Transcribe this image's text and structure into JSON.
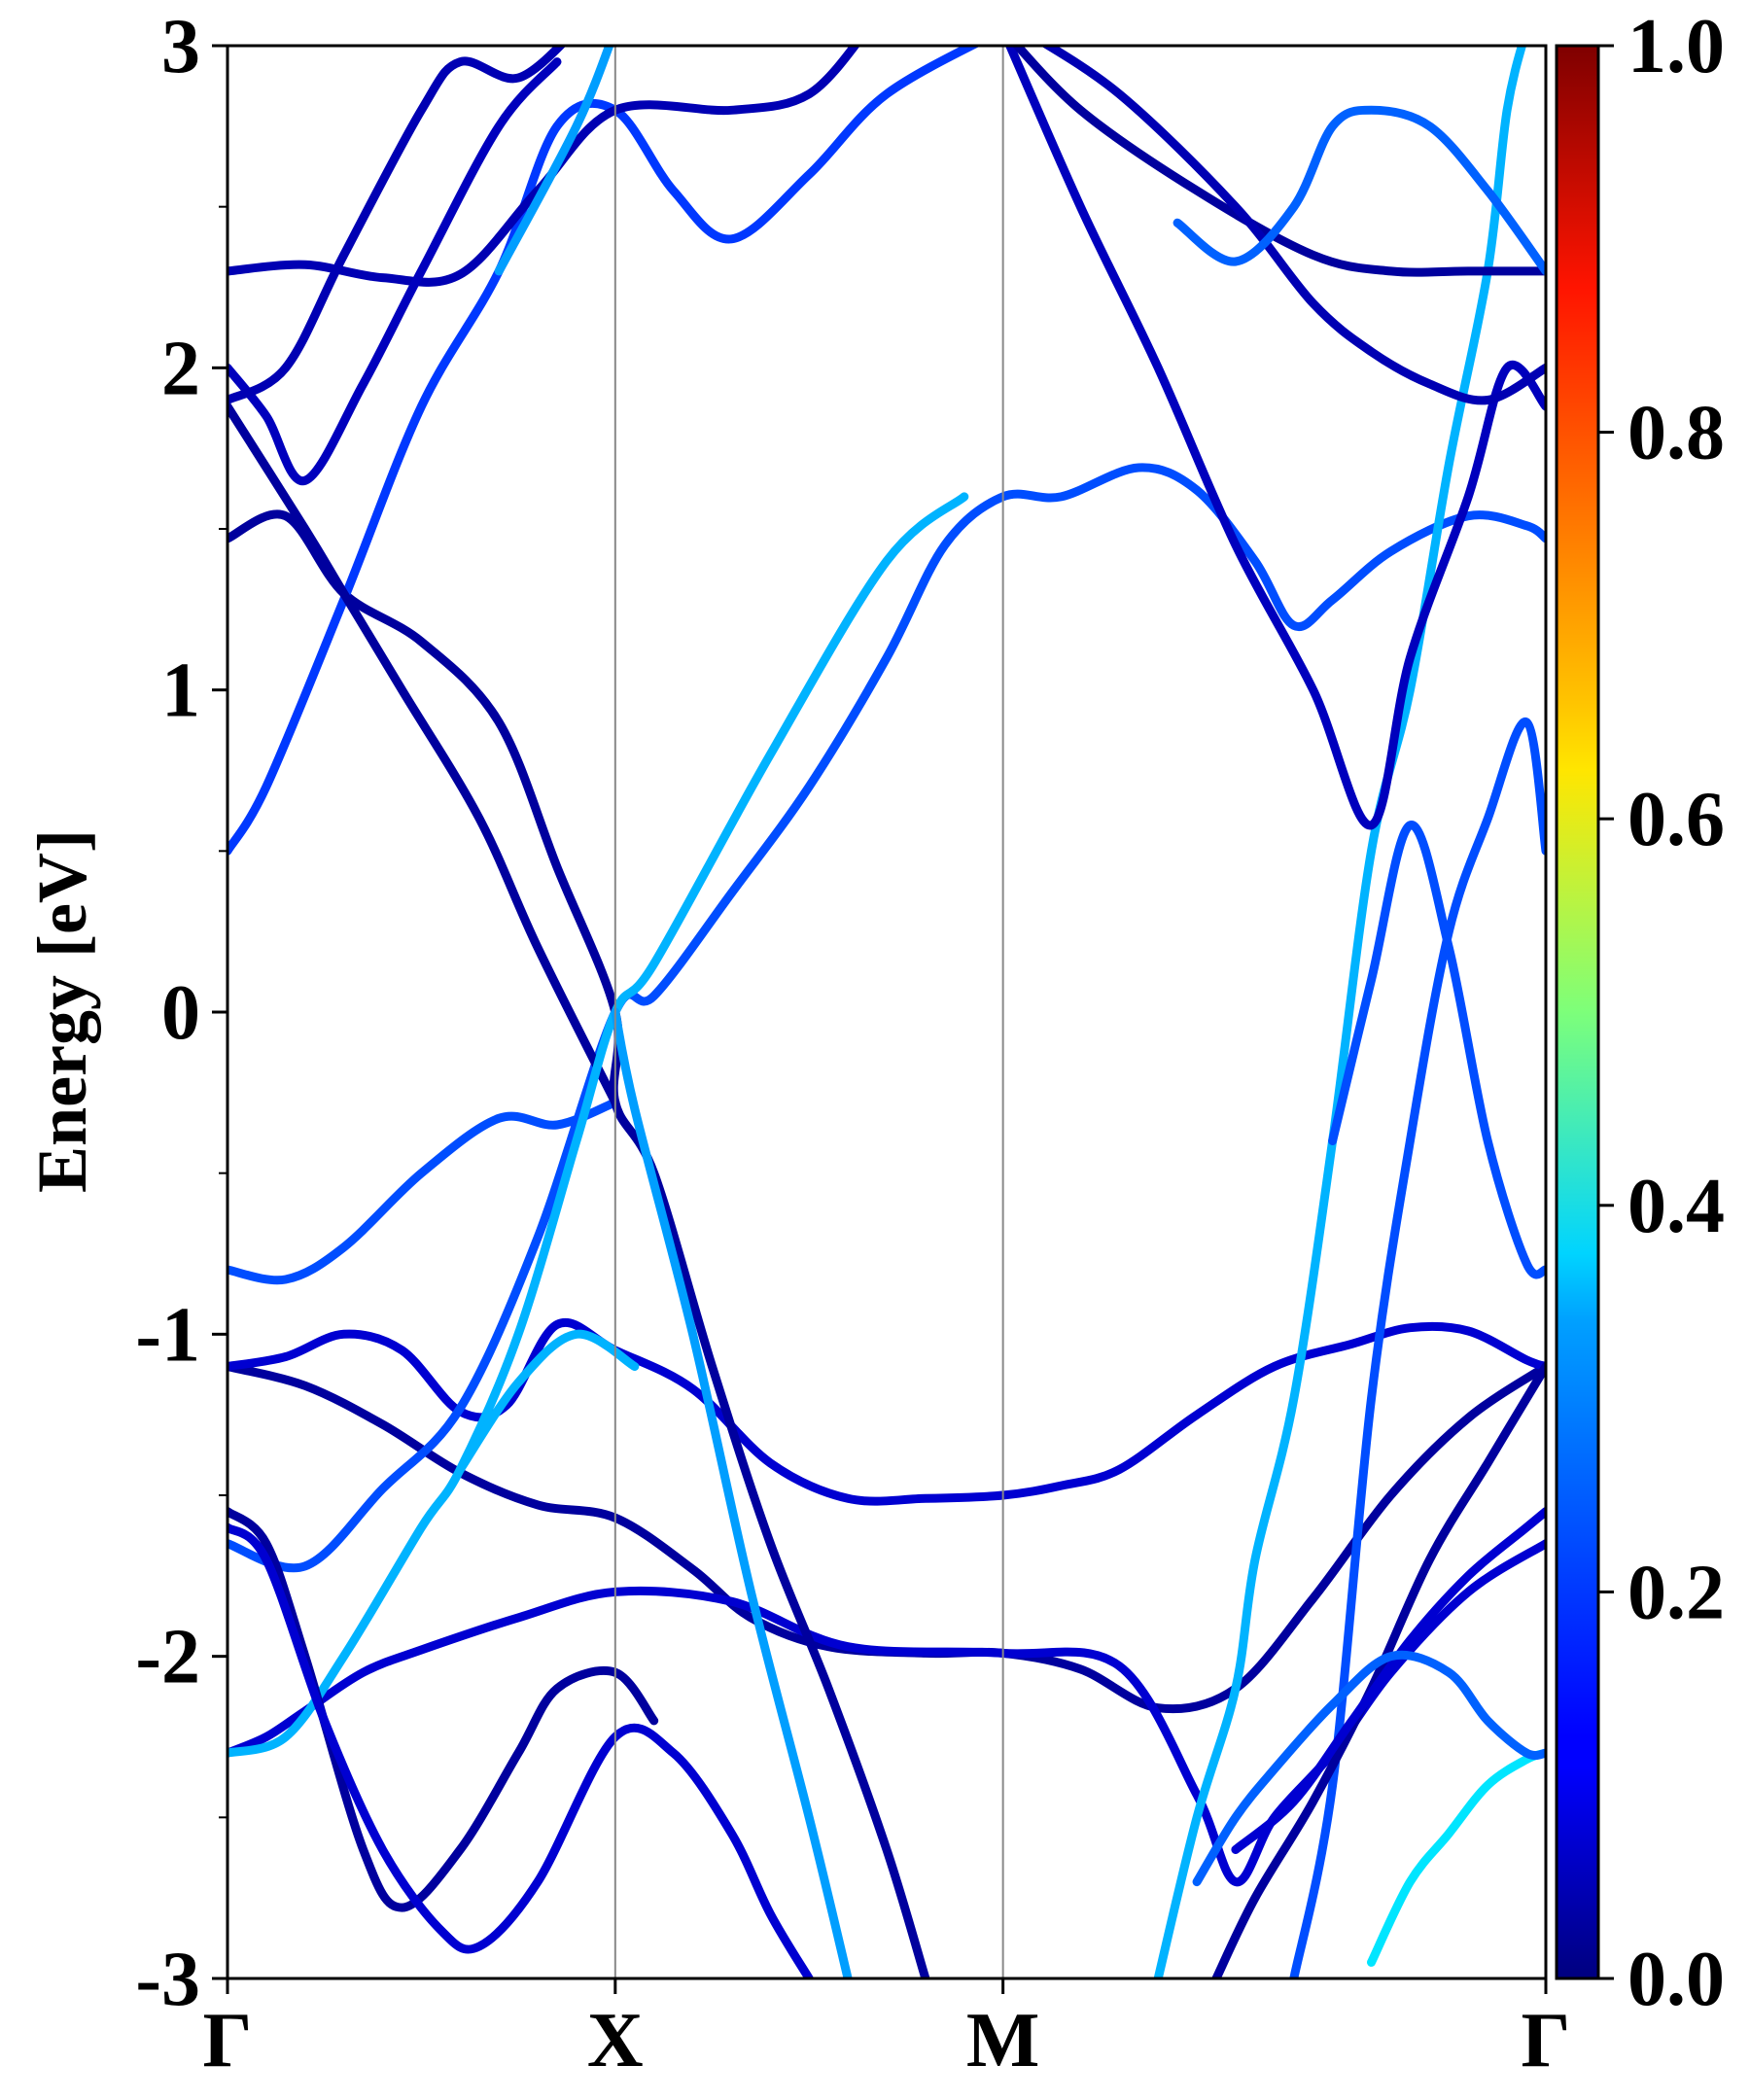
{
  "chart_data": {
    "type": "line",
    "title": "",
    "xlabel": "",
    "ylabel": "Energy [eV]",
    "ylim": [
      -3,
      3
    ],
    "y_ticks": [
      "-3",
      "-2",
      "-1",
      "0",
      "1",
      "2",
      "3"
    ],
    "x_ticks": [
      "Γ",
      "X",
      "M",
      "Γ"
    ],
    "x_tick_positions": [
      0,
      1,
      2,
      3.4
    ],
    "colorbar": {
      "range": [
        0,
        1
      ],
      "ticks": [
        "0.0",
        "0.2",
        "0.4",
        "0.6",
        "0.8",
        "1.0"
      ],
      "colormap": "jet"
    },
    "grid": false,
    "series": [
      {
        "c": 0.03,
        "points": [
          [
            0,
            -1.1
          ],
          [
            0.2,
            -1.16
          ],
          [
            0.4,
            -1.28
          ],
          [
            0.6,
            -1.43
          ],
          [
            0.8,
            -1.53
          ],
          [
            1.0,
            -1.57
          ],
          [
            1.2,
            -1.73
          ],
          [
            1.35,
            -1.88
          ],
          [
            1.55,
            -1.97
          ],
          [
            1.8,
            -1.99
          ],
          [
            2.0,
            -1.99
          ],
          [
            2.2,
            -2.04
          ],
          [
            2.4,
            -2.16
          ],
          [
            2.6,
            -2.1
          ],
          [
            2.8,
            -1.82
          ],
          [
            3.0,
            -1.5
          ],
          [
            3.2,
            -1.26
          ],
          [
            3.4,
            -1.1
          ]
        ]
      },
      {
        "c": 0.08,
        "points": [
          [
            0,
            -1.1
          ],
          [
            0.15,
            -1.07
          ],
          [
            0.3,
            -1.0
          ],
          [
            0.45,
            -1.05
          ],
          [
            0.6,
            -1.24
          ],
          [
            0.72,
            -1.22
          ],
          [
            0.85,
            -0.97
          ],
          [
            1.0,
            -1.05
          ],
          [
            1.2,
            -1.17
          ],
          [
            1.4,
            -1.4
          ],
          [
            1.6,
            -1.51
          ],
          [
            1.8,
            -1.51
          ],
          [
            2.0,
            -1.5
          ],
          [
            2.15,
            -1.47
          ],
          [
            2.3,
            -1.42
          ],
          [
            2.5,
            -1.25
          ],
          [
            2.7,
            -1.1
          ],
          [
            2.9,
            -1.03
          ],
          [
            3.05,
            -0.98
          ],
          [
            3.2,
            -0.99
          ],
          [
            3.35,
            -1.08
          ],
          [
            3.4,
            -1.1
          ]
        ]
      },
      {
        "c": 0.08,
        "points": [
          [
            0,
            -2.3
          ],
          [
            0.1,
            -2.25
          ],
          [
            0.2,
            -2.17
          ],
          [
            0.35,
            -2.05
          ],
          [
            0.5,
            -1.98
          ],
          [
            0.75,
            -1.88
          ],
          [
            1.0,
            -1.8
          ],
          [
            1.3,
            -1.83
          ],
          [
            1.6,
            -1.97
          ],
          [
            2.0,
            -1.99
          ],
          [
            2.3,
            -2.03
          ],
          [
            2.5,
            -2.43
          ],
          [
            2.6,
            -2.7
          ],
          [
            2.7,
            -2.5
          ],
          [
            2.85,
            -2.3
          ],
          [
            3.0,
            -2.05
          ],
          [
            3.2,
            -1.8
          ],
          [
            3.4,
            -1.65
          ]
        ]
      },
      {
        "c": 0.2,
        "points": [
          [
            0,
            -0.8
          ],
          [
            0.15,
            -0.83
          ],
          [
            0.3,
            -0.73
          ],
          [
            0.5,
            -0.5
          ],
          [
            0.7,
            -0.33
          ],
          [
            0.85,
            -0.35
          ],
          [
            1.0,
            -0.28
          ]
        ]
      },
      {
        "c": 0.2,
        "points": [
          [
            0,
            -1.65
          ],
          [
            0.2,
            -1.72
          ],
          [
            0.4,
            -1.48
          ],
          [
            0.6,
            -1.23
          ],
          [
            0.8,
            -0.7
          ],
          [
            1.0,
            0.0
          ],
          [
            1.1,
            0.05
          ],
          [
            1.3,
            0.37
          ],
          [
            1.5,
            0.7
          ],
          [
            1.7,
            1.1
          ],
          [
            1.85,
            1.45
          ],
          [
            2.0,
            1.6
          ],
          [
            2.15,
            1.6
          ],
          [
            2.35,
            1.69
          ],
          [
            2.5,
            1.62
          ],
          [
            2.65,
            1.4
          ],
          [
            2.75,
            1.2
          ],
          [
            2.85,
            1.28
          ],
          [
            3.0,
            1.43
          ],
          [
            3.2,
            1.54
          ],
          [
            3.35,
            1.51
          ],
          [
            3.4,
            1.47
          ]
        ]
      },
      {
        "c": 0.03,
        "points": [
          [
            0,
            1.47
          ],
          [
            0.15,
            1.54
          ],
          [
            0.3,
            1.3
          ],
          [
            0.5,
            1.15
          ],
          [
            0.7,
            0.9
          ],
          [
            0.85,
            0.45
          ],
          [
            1.0,
            0.0
          ],
          [
            1.0,
            -0.28
          ],
          [
            1.1,
            -0.5
          ],
          [
            1.25,
            -1.1
          ],
          [
            1.4,
            -1.65
          ],
          [
            1.55,
            -2.1
          ],
          [
            1.7,
            -2.6
          ],
          [
            1.8,
            -3.0
          ]
        ]
      },
      {
        "c": 0.18,
        "points": [
          [
            0,
            0.5
          ],
          [
            0.1,
            0.7
          ],
          [
            0.3,
            1.28
          ],
          [
            0.5,
            1.88
          ],
          [
            0.7,
            2.3
          ],
          [
            0.85,
            2.75
          ],
          [
            1.0,
            2.8
          ],
          [
            1.15,
            2.55
          ],
          [
            1.3,
            2.4
          ],
          [
            1.5,
            2.6
          ],
          [
            1.7,
            2.85
          ],
          [
            2.0,
            3.05
          ]
        ]
      },
      {
        "c": 0.03,
        "points": [
          [
            0,
            1.88
          ],
          [
            0.2,
            1.5
          ],
          [
            0.3,
            1.3
          ],
          [
            0.45,
            1.0
          ],
          [
            0.65,
            0.6
          ],
          [
            0.8,
            0.2
          ],
          [
            1.0,
            -0.28
          ]
        ]
      },
      {
        "c": 0.05,
        "points": [
          [
            0,
            2.3
          ],
          [
            0.2,
            2.32
          ],
          [
            0.4,
            2.28
          ],
          [
            0.6,
            2.29
          ],
          [
            0.8,
            2.55
          ],
          [
            1.0,
            2.8
          ],
          [
            1.3,
            2.8
          ],
          [
            1.5,
            2.85
          ],
          [
            1.65,
            3.05
          ]
        ]
      },
      {
        "c": 0.06,
        "points": [
          [
            0,
            2.0
          ],
          [
            0.1,
            1.85
          ],
          [
            0.2,
            1.65
          ],
          [
            0.35,
            1.95
          ],
          [
            0.5,
            2.3
          ],
          [
            0.7,
            2.75
          ],
          [
            0.85,
            2.95
          ]
        ]
      },
      {
        "c": 0.05,
        "points": [
          [
            0,
            1.9
          ],
          [
            0.15,
            2.0
          ],
          [
            0.3,
            2.35
          ],
          [
            0.5,
            2.8
          ],
          [
            0.6,
            2.95
          ],
          [
            0.75,
            2.9
          ],
          [
            0.9,
            3.05
          ]
        ]
      },
      {
        "c": 0.3,
        "points": [
          [
            0,
            -2.3
          ],
          [
            0.15,
            -2.25
          ],
          [
            0.3,
            -2.0
          ],
          [
            0.5,
            -1.6
          ],
          [
            0.6,
            -1.42
          ],
          [
            0.75,
            -1.0
          ],
          [
            0.9,
            -0.4
          ],
          [
            1.0,
            0.0
          ],
          [
            1.1,
            0.15
          ],
          [
            1.4,
            0.8
          ],
          [
            1.7,
            1.4
          ],
          [
            1.9,
            1.6
          ]
        ]
      },
      {
        "c": 0.3,
        "points": [
          [
            0.6,
            -1.42
          ],
          [
            0.75,
            -1.15
          ],
          [
            0.9,
            -1.0
          ],
          [
            1.05,
            -1.1
          ]
        ]
      },
      {
        "c": 0.28,
        "points": [
          [
            0.7,
            2.3
          ],
          [
            0.9,
            2.75
          ],
          [
            1.0,
            3.05
          ]
        ]
      },
      {
        "c": 0.28,
        "points": [
          [
            1.0,
            0.0
          ],
          [
            1.05,
            -0.3
          ],
          [
            1.2,
            -1.0
          ],
          [
            1.35,
            -1.8
          ],
          [
            1.5,
            -2.5
          ],
          [
            1.6,
            -3.0
          ]
        ]
      },
      {
        "c": 0.03,
        "points": [
          [
            0,
            -1.55
          ],
          [
            0.1,
            -1.65
          ],
          [
            0.2,
            -2.0
          ],
          [
            0.35,
            -2.6
          ],
          [
            0.45,
            -2.78
          ],
          [
            0.6,
            -2.6
          ],
          [
            0.75,
            -2.3
          ],
          [
            0.85,
            -2.1
          ],
          [
            1.0,
            -2.05
          ],
          [
            1.1,
            -2.2
          ]
        ]
      },
      {
        "c": 0.08,
        "points": [
          [
            0,
            -1.6
          ],
          [
            0.1,
            -1.7
          ],
          [
            0.25,
            -2.2
          ],
          [
            0.4,
            -2.6
          ],
          [
            0.55,
            -2.85
          ],
          [
            0.65,
            -2.9
          ],
          [
            0.8,
            -2.7
          ],
          [
            1.0,
            -2.25
          ],
          [
            1.15,
            -2.3
          ],
          [
            1.3,
            -2.55
          ],
          [
            1.4,
            -2.8
          ],
          [
            1.5,
            -3.0
          ]
        ]
      },
      {
        "c": 0.3,
        "points": [
          [
            2.4,
            -3.0
          ],
          [
            2.5,
            -2.5
          ],
          [
            2.6,
            -2.1
          ],
          [
            2.65,
            -1.7
          ],
          [
            2.75,
            -1.2
          ],
          [
            2.85,
            -0.4
          ],
          [
            2.95,
            0.5
          ],
          [
            3.05,
            1.0
          ],
          [
            3.15,
            1.7
          ],
          [
            3.25,
            2.3
          ],
          [
            3.3,
            2.8
          ],
          [
            3.35,
            3.05
          ]
        ]
      },
      {
        "c": 0.2,
        "points": [
          [
            2.75,
            -3.0
          ],
          [
            2.85,
            -2.4
          ],
          [
            2.95,
            -1.2
          ],
          [
            3.05,
            -0.4
          ],
          [
            3.15,
            0.25
          ],
          [
            3.25,
            0.6
          ],
          [
            3.35,
            0.9
          ],
          [
            3.4,
            0.5
          ]
        ]
      },
      {
        "c": 0.2,
        "points": [
          [
            2.85,
            -0.4
          ],
          [
            2.95,
            0.1
          ],
          [
            3.05,
            0.58
          ],
          [
            3.15,
            0.2
          ],
          [
            3.25,
            -0.4
          ],
          [
            3.35,
            -0.78
          ],
          [
            3.4,
            -0.8
          ]
        ]
      },
      {
        "c": 0.06,
        "points": [
          [
            2.0,
            3.05
          ],
          [
            2.2,
            2.5
          ],
          [
            2.4,
            2.0
          ],
          [
            2.6,
            1.45
          ],
          [
            2.8,
            1.0
          ],
          [
            2.95,
            0.58
          ],
          [
            3.05,
            1.1
          ],
          [
            3.2,
            1.6
          ],
          [
            3.3,
            2.0
          ],
          [
            3.4,
            1.88
          ]
        ]
      },
      {
        "c": 0.03,
        "points": [
          [
            2.0,
            3.05
          ],
          [
            2.2,
            2.8
          ],
          [
            2.5,
            2.55
          ],
          [
            2.8,
            2.35
          ],
          [
            3.0,
            2.3
          ],
          [
            3.2,
            2.3
          ],
          [
            3.4,
            2.3
          ]
        ]
      },
      {
        "c": 0.05,
        "points": [
          [
            2.05,
            3.05
          ],
          [
            2.3,
            2.85
          ],
          [
            2.6,
            2.5
          ],
          [
            2.8,
            2.2
          ],
          [
            2.95,
            2.05
          ],
          [
            3.1,
            1.95
          ],
          [
            3.25,
            1.9
          ],
          [
            3.4,
            2.0
          ]
        ]
      },
      {
        "c": 0.03,
        "points": [
          [
            2.55,
            -3.0
          ],
          [
            2.65,
            -2.75
          ],
          [
            2.8,
            -2.45
          ],
          [
            2.95,
            -2.1
          ],
          [
            3.1,
            -1.7
          ],
          [
            3.25,
            -1.4
          ],
          [
            3.4,
            -1.1
          ]
        ]
      },
      {
        "c": 0.08,
        "points": [
          [
            2.6,
            -2.6
          ],
          [
            2.75,
            -2.45
          ],
          [
            2.9,
            -2.2
          ],
          [
            3.05,
            -1.95
          ],
          [
            3.2,
            -1.75
          ],
          [
            3.35,
            -1.6
          ],
          [
            3.4,
            -1.55
          ]
        ]
      },
      {
        "c": 0.35,
        "points": [
          [
            2.95,
            -2.95
          ],
          [
            3.05,
            -2.7
          ],
          [
            3.15,
            -2.55
          ],
          [
            3.25,
            -2.4
          ],
          [
            3.35,
            -2.32
          ],
          [
            3.4,
            -2.3
          ]
        ]
      },
      {
        "c": 0.22,
        "points": [
          [
            2.5,
            -2.7
          ],
          [
            2.6,
            -2.5
          ],
          [
            2.7,
            -2.35
          ],
          [
            2.85,
            -2.15
          ],
          [
            3.0,
            -2.0
          ],
          [
            3.15,
            -2.05
          ],
          [
            3.25,
            -2.2
          ],
          [
            3.35,
            -2.3
          ],
          [
            3.4,
            -2.3
          ]
        ]
      },
      {
        "c": 0.22,
        "points": [
          [
            2.45,
            2.45
          ],
          [
            2.6,
            2.33
          ],
          [
            2.75,
            2.5
          ],
          [
            2.85,
            2.75
          ],
          [
            2.95,
            2.8
          ],
          [
            3.1,
            2.75
          ],
          [
            3.25,
            2.55
          ],
          [
            3.4,
            2.3
          ]
        ]
      }
    ]
  }
}
